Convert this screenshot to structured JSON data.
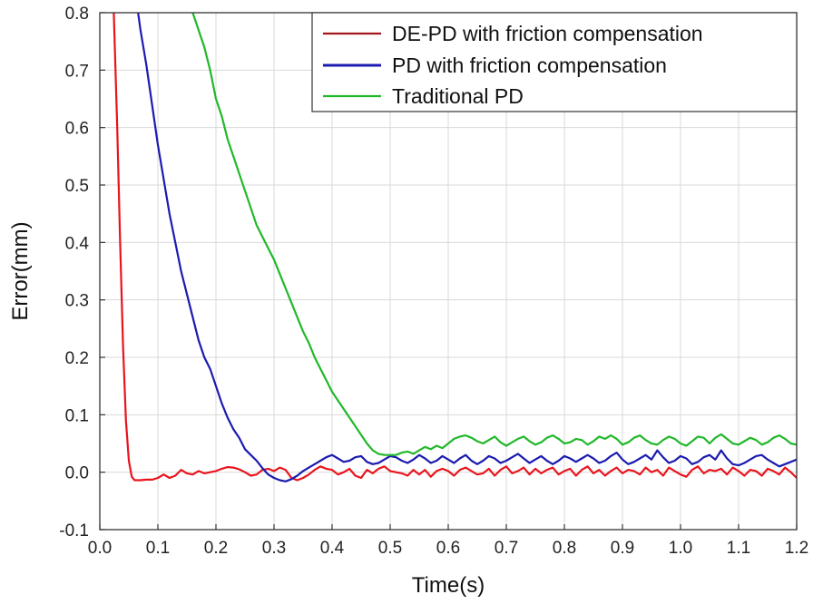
{
  "chart_data": {
    "type": "line",
    "xlabel": "Time(s)",
    "ylabel": "Error(mm)",
    "xlim": [
      0.0,
      1.2
    ],
    "ylim": [
      -0.1,
      0.8
    ],
    "grid": true,
    "legend_position": "top-right",
    "x_ticks": [
      "0.0",
      "0.1",
      "0.2",
      "0.3",
      "0.4",
      "0.5",
      "0.6",
      "0.7",
      "0.8",
      "0.9",
      "1.0",
      "1.1",
      "1.2"
    ],
    "y_ticks": [
      "-0.1",
      "0.0",
      "0.1",
      "0.2",
      "0.3",
      "0.4",
      "0.5",
      "0.6",
      "0.7",
      "0.8"
    ],
    "series": [
      {
        "name": "DE-PD with friction compensation",
        "color": "#e8141c",
        "legend_color": "#a3161c",
        "x": [
          0.024,
          0.03,
          0.035,
          0.04,
          0.045,
          0.05,
          0.055,
          0.06,
          0.065,
          0.07,
          0.08,
          0.09,
          0.1,
          0.11,
          0.12,
          0.13,
          0.14,
          0.15,
          0.16,
          0.17,
          0.18,
          0.19,
          0.2,
          0.21,
          0.22,
          0.23,
          0.24,
          0.25,
          0.26,
          0.27,
          0.28,
          0.29,
          0.3,
          0.31,
          0.32,
          0.33,
          0.34,
          0.35,
          0.36,
          0.37,
          0.38,
          0.39,
          0.4,
          0.41,
          0.42,
          0.43,
          0.44,
          0.45,
          0.46,
          0.47,
          0.48,
          0.49,
          0.5,
          0.51,
          0.52,
          0.53,
          0.54,
          0.55,
          0.56,
          0.57,
          0.58,
          0.59,
          0.6,
          0.61,
          0.62,
          0.63,
          0.64,
          0.65,
          0.66,
          0.67,
          0.68,
          0.69,
          0.7,
          0.71,
          0.72,
          0.73,
          0.74,
          0.75,
          0.76,
          0.77,
          0.78,
          0.79,
          0.8,
          0.81,
          0.82,
          0.83,
          0.84,
          0.85,
          0.86,
          0.87,
          0.88,
          0.89,
          0.9,
          0.91,
          0.92,
          0.93,
          0.94,
          0.95,
          0.96,
          0.97,
          0.98,
          0.99,
          1.0,
          1.01,
          1.02,
          1.03,
          1.04,
          1.05,
          1.06,
          1.07,
          1.08,
          1.09,
          1.1,
          1.11,
          1.12,
          1.13,
          1.14,
          1.15,
          1.16,
          1.17,
          1.18,
          1.19,
          1.2
        ],
        "y": [
          0.8,
          0.6,
          0.4,
          0.22,
          0.09,
          0.02,
          -0.008,
          -0.014,
          -0.014,
          -0.014,
          -0.013,
          -0.013,
          -0.01,
          -0.004,
          -0.01,
          -0.006,
          0.004,
          -0.002,
          -0.004,
          0.002,
          -0.002,
          0.0,
          0.002,
          0.006,
          0.009,
          0.008,
          0.005,
          0.0,
          -0.006,
          -0.004,
          0.004,
          0.006,
          0.002,
          0.008,
          0.004,
          -0.01,
          -0.014,
          -0.01,
          -0.004,
          0.004,
          0.01,
          0.006,
          0.004,
          -0.004,
          0.0,
          0.006,
          -0.006,
          -0.01,
          0.004,
          -0.002,
          0.006,
          0.01,
          0.002,
          0.0,
          -0.002,
          -0.006,
          0.004,
          -0.004,
          0.004,
          -0.008,
          0.002,
          0.006,
          0.002,
          -0.006,
          0.004,
          0.008,
          0.002,
          -0.004,
          -0.002,
          0.006,
          -0.006,
          0.004,
          0.01,
          -0.002,
          0.002,
          0.008,
          -0.004,
          0.006,
          -0.002,
          0.004,
          0.008,
          -0.004,
          0.002,
          0.006,
          -0.006,
          0.004,
          0.01,
          -0.002,
          0.004,
          -0.006,
          0.002,
          0.008,
          -0.002,
          0.004,
          0.002,
          -0.004,
          0.008,
          0.0,
          0.004,
          -0.006,
          0.008,
          0.002,
          -0.004,
          -0.008,
          0.004,
          0.01,
          -0.002,
          0.004,
          0.002,
          0.006,
          -0.004,
          0.008,
          0.002,
          -0.006,
          0.004,
          0.002,
          -0.006,
          0.006,
          0.002,
          -0.004,
          0.008,
          0.0,
          -0.01
        ]
      },
      {
        "name": "PD with friction compensation",
        "color": "#1b1bb0",
        "legend_color": "#1b1bb0",
        "x": [
          0.066,
          0.07,
          0.08,
          0.09,
          0.1,
          0.11,
          0.12,
          0.13,
          0.14,
          0.15,
          0.16,
          0.17,
          0.18,
          0.19,
          0.2,
          0.21,
          0.22,
          0.23,
          0.24,
          0.25,
          0.26,
          0.27,
          0.28,
          0.29,
          0.3,
          0.31,
          0.32,
          0.33,
          0.34,
          0.35,
          0.36,
          0.37,
          0.38,
          0.39,
          0.4,
          0.41,
          0.42,
          0.43,
          0.44,
          0.45,
          0.46,
          0.47,
          0.48,
          0.49,
          0.5,
          0.51,
          0.52,
          0.53,
          0.54,
          0.55,
          0.56,
          0.57,
          0.58,
          0.59,
          0.6,
          0.61,
          0.62,
          0.63,
          0.64,
          0.65,
          0.66,
          0.67,
          0.68,
          0.69,
          0.7,
          0.71,
          0.72,
          0.73,
          0.74,
          0.75,
          0.76,
          0.77,
          0.78,
          0.79,
          0.8,
          0.81,
          0.82,
          0.83,
          0.84,
          0.85,
          0.86,
          0.87,
          0.88,
          0.89,
          0.9,
          0.91,
          0.92,
          0.93,
          0.94,
          0.95,
          0.96,
          0.97,
          0.98,
          0.99,
          1.0,
          1.01,
          1.02,
          1.03,
          1.04,
          1.05,
          1.06,
          1.07,
          1.08,
          1.09,
          1.1,
          1.11,
          1.12,
          1.13,
          1.14,
          1.15,
          1.16,
          1.17,
          1.18,
          1.19,
          1.2
        ],
        "y": [
          0.8,
          0.77,
          0.71,
          0.64,
          0.57,
          0.51,
          0.45,
          0.4,
          0.35,
          0.31,
          0.27,
          0.23,
          0.2,
          0.18,
          0.15,
          0.12,
          0.095,
          0.075,
          0.06,
          0.04,
          0.03,
          0.02,
          0.007,
          -0.004,
          -0.01,
          -0.014,
          -0.016,
          -0.012,
          -0.006,
          0.002,
          0.008,
          0.014,
          0.02,
          0.026,
          0.03,
          0.024,
          0.018,
          0.02,
          0.026,
          0.028,
          0.018,
          0.014,
          0.016,
          0.022,
          0.028,
          0.026,
          0.02,
          0.016,
          0.022,
          0.03,
          0.024,
          0.016,
          0.02,
          0.028,
          0.022,
          0.016,
          0.024,
          0.03,
          0.02,
          0.014,
          0.02,
          0.028,
          0.024,
          0.016,
          0.02,
          0.026,
          0.032,
          0.024,
          0.016,
          0.022,
          0.028,
          0.02,
          0.014,
          0.02,
          0.028,
          0.024,
          0.018,
          0.024,
          0.03,
          0.024,
          0.016,
          0.02,
          0.028,
          0.034,
          0.022,
          0.014,
          0.018,
          0.024,
          0.03,
          0.022,
          0.038,
          0.026,
          0.016,
          0.02,
          0.028,
          0.024,
          0.014,
          0.018,
          0.026,
          0.03,
          0.022,
          0.038,
          0.024,
          0.014,
          0.012,
          0.016,
          0.022,
          0.028,
          0.03,
          0.022,
          0.016,
          0.01,
          0.014,
          0.018,
          0.022
        ]
      },
      {
        "name": "Traditional PD",
        "color": "#21b82a",
        "legend_color": "#21b82a",
        "x": [
          0.16,
          0.17,
          0.18,
          0.19,
          0.2,
          0.21,
          0.22,
          0.23,
          0.24,
          0.25,
          0.26,
          0.27,
          0.28,
          0.29,
          0.3,
          0.31,
          0.32,
          0.33,
          0.34,
          0.35,
          0.36,
          0.37,
          0.38,
          0.39,
          0.4,
          0.41,
          0.42,
          0.43,
          0.44,
          0.45,
          0.46,
          0.47,
          0.48,
          0.49,
          0.5,
          0.51,
          0.52,
          0.53,
          0.54,
          0.55,
          0.56,
          0.57,
          0.58,
          0.59,
          0.6,
          0.61,
          0.62,
          0.63,
          0.64,
          0.65,
          0.66,
          0.67,
          0.68,
          0.69,
          0.7,
          0.71,
          0.72,
          0.73,
          0.74,
          0.75,
          0.76,
          0.77,
          0.78,
          0.79,
          0.8,
          0.81,
          0.82,
          0.83,
          0.84,
          0.85,
          0.86,
          0.87,
          0.88,
          0.89,
          0.9,
          0.91,
          0.92,
          0.93,
          0.94,
          0.95,
          0.96,
          0.97,
          0.98,
          0.99,
          1.0,
          1.01,
          1.02,
          1.03,
          1.04,
          1.05,
          1.06,
          1.07,
          1.08,
          1.09,
          1.1,
          1.11,
          1.12,
          1.13,
          1.14,
          1.15,
          1.16,
          1.17,
          1.18,
          1.19,
          1.2
        ],
        "y": [
          0.8,
          0.77,
          0.74,
          0.7,
          0.65,
          0.62,
          0.58,
          0.55,
          0.52,
          0.49,
          0.46,
          0.43,
          0.41,
          0.39,
          0.37,
          0.345,
          0.32,
          0.295,
          0.27,
          0.245,
          0.225,
          0.2,
          0.18,
          0.16,
          0.14,
          0.125,
          0.11,
          0.095,
          0.08,
          0.065,
          0.05,
          0.038,
          0.032,
          0.03,
          0.03,
          0.03,
          0.034,
          0.036,
          0.032,
          0.038,
          0.044,
          0.04,
          0.046,
          0.042,
          0.05,
          0.058,
          0.062,
          0.064,
          0.06,
          0.054,
          0.05,
          0.056,
          0.062,
          0.052,
          0.046,
          0.052,
          0.058,
          0.062,
          0.054,
          0.048,
          0.052,
          0.06,
          0.064,
          0.058,
          0.05,
          0.052,
          0.058,
          0.056,
          0.048,
          0.054,
          0.062,
          0.058,
          0.064,
          0.058,
          0.048,
          0.052,
          0.06,
          0.064,
          0.056,
          0.05,
          0.048,
          0.056,
          0.062,
          0.058,
          0.05,
          0.046,
          0.054,
          0.062,
          0.06,
          0.05,
          0.06,
          0.066,
          0.058,
          0.05,
          0.048,
          0.054,
          0.06,
          0.056,
          0.048,
          0.052,
          0.06,
          0.064,
          0.058,
          0.05,
          0.048
        ]
      }
    ]
  }
}
